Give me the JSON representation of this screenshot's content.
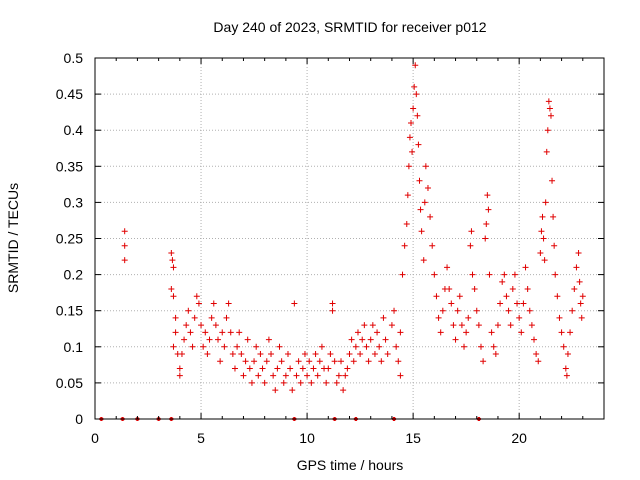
{
  "chart_data": {
    "type": "scatter",
    "title": "Day 240 of 2023, SRMTID for receiver p012",
    "xlabel": "GPS time / hours",
    "ylabel": "SRMTID / TECUs",
    "xlim": [
      0,
      24
    ],
    "ylim": [
      0,
      0.5
    ],
    "x_ticks": [
      0,
      5,
      10,
      15,
      20
    ],
    "y_ticks": [
      0,
      0.05,
      0.1,
      0.15,
      0.2,
      0.25,
      0.3,
      0.35,
      0.4,
      0.45,
      0.5
    ],
    "x_tick_labels": [
      "0",
      "5",
      "10",
      "15",
      "20"
    ],
    "y_tick_labels": [
      "0",
      "0.05",
      "0.1",
      "0.15",
      "0.2",
      "0.25",
      "0.3",
      "0.35",
      "0.4",
      "0.45",
      "0.5"
    ],
    "grid": true,
    "marker": "+",
    "color": "#e00000",
    "series": [
      {
        "name": "SRMTID",
        "points": [
          [
            0.3,
            0.0
          ],
          [
            1.3,
            0.0
          ],
          [
            2.0,
            0.0
          ],
          [
            3.0,
            0.0
          ],
          [
            3.6,
            0.0
          ],
          [
            9.4,
            0.0
          ],
          [
            11.3,
            0.0
          ],
          [
            12.3,
            0.0
          ],
          [
            14.1,
            0.0
          ],
          [
            18.1,
            0.0
          ],
          [
            1.4,
            0.26
          ],
          [
            1.4,
            0.24
          ],
          [
            1.4,
            0.22
          ],
          [
            3.6,
            0.23
          ],
          [
            3.65,
            0.22
          ],
          [
            3.7,
            0.21
          ],
          [
            3.6,
            0.18
          ],
          [
            3.7,
            0.17
          ],
          [
            3.8,
            0.14
          ],
          [
            3.8,
            0.12
          ],
          [
            3.7,
            0.1
          ],
          [
            3.9,
            0.09
          ],
          [
            4.0,
            0.07
          ],
          [
            4.0,
            0.06
          ],
          [
            4.1,
            0.09
          ],
          [
            4.2,
            0.11
          ],
          [
            4.3,
            0.13
          ],
          [
            4.4,
            0.15
          ],
          [
            4.5,
            0.12
          ],
          [
            4.6,
            0.1
          ],
          [
            4.7,
            0.14
          ],
          [
            4.8,
            0.17
          ],
          [
            4.9,
            0.16
          ],
          [
            5.0,
            0.13
          ],
          [
            5.1,
            0.1
          ],
          [
            5.2,
            0.12
          ],
          [
            5.3,
            0.09
          ],
          [
            5.4,
            0.11
          ],
          [
            5.5,
            0.14
          ],
          [
            5.6,
            0.16
          ],
          [
            5.7,
            0.13
          ],
          [
            5.8,
            0.11
          ],
          [
            5.9,
            0.08
          ],
          [
            6.0,
            0.12
          ],
          [
            6.1,
            0.1
          ],
          [
            6.2,
            0.14
          ],
          [
            6.3,
            0.16
          ],
          [
            6.4,
            0.12
          ],
          [
            6.5,
            0.09
          ],
          [
            6.6,
            0.07
          ],
          [
            6.7,
            0.1
          ],
          [
            6.8,
            0.12
          ],
          [
            6.9,
            0.09
          ],
          [
            7.0,
            0.06
          ],
          [
            7.1,
            0.08
          ],
          [
            7.2,
            0.11
          ],
          [
            7.3,
            0.07
          ],
          [
            7.4,
            0.05
          ],
          [
            7.5,
            0.08
          ],
          [
            7.6,
            0.1
          ],
          [
            7.7,
            0.06
          ],
          [
            7.8,
            0.09
          ],
          [
            7.9,
            0.07
          ],
          [
            8.0,
            0.05
          ],
          [
            8.1,
            0.08
          ],
          [
            8.2,
            0.11
          ],
          [
            8.3,
            0.09
          ],
          [
            8.4,
            0.06
          ],
          [
            8.5,
            0.04
          ],
          [
            8.6,
            0.07
          ],
          [
            8.7,
            0.1
          ],
          [
            8.8,
            0.08
          ],
          [
            8.9,
            0.05
          ],
          [
            9.0,
            0.06
          ],
          [
            9.1,
            0.09
          ],
          [
            9.2,
            0.07
          ],
          [
            9.3,
            0.04
          ],
          [
            9.4,
            0.16
          ],
          [
            9.5,
            0.06
          ],
          [
            9.6,
            0.08
          ],
          [
            9.7,
            0.05
          ],
          [
            9.8,
            0.07
          ],
          [
            9.9,
            0.09
          ],
          [
            10.0,
            0.06
          ],
          [
            10.1,
            0.08
          ],
          [
            10.2,
            0.05
          ],
          [
            10.3,
            0.07
          ],
          [
            10.4,
            0.09
          ],
          [
            10.5,
            0.06
          ],
          [
            10.6,
            0.08
          ],
          [
            10.7,
            0.1
          ],
          [
            10.8,
            0.07
          ],
          [
            10.9,
            0.05
          ],
          [
            11.0,
            0.07
          ],
          [
            11.1,
            0.09
          ],
          [
            11.2,
            0.16
          ],
          [
            11.2,
            0.15
          ],
          [
            11.3,
            0.08
          ],
          [
            11.4,
            0.05
          ],
          [
            11.5,
            0.06
          ],
          [
            11.6,
            0.08
          ],
          [
            11.7,
            0.04
          ],
          [
            11.8,
            0.06
          ],
          [
            11.9,
            0.07
          ],
          [
            12.0,
            0.09
          ],
          [
            12.1,
            0.11
          ],
          [
            12.2,
            0.08
          ],
          [
            12.3,
            0.1
          ],
          [
            12.4,
            0.12
          ],
          [
            12.5,
            0.09
          ],
          [
            12.6,
            0.11
          ],
          [
            12.7,
            0.13
          ],
          [
            12.8,
            0.1
          ],
          [
            12.9,
            0.08
          ],
          [
            13.0,
            0.11
          ],
          [
            13.1,
            0.13
          ],
          [
            13.2,
            0.09
          ],
          [
            13.3,
            0.12
          ],
          [
            13.4,
            0.1
          ],
          [
            13.5,
            0.08
          ],
          [
            13.6,
            0.14
          ],
          [
            13.7,
            0.11
          ],
          [
            13.8,
            0.09
          ],
          [
            14.0,
            0.13
          ],
          [
            14.1,
            0.15
          ],
          [
            14.2,
            0.1
          ],
          [
            14.3,
            0.08
          ],
          [
            14.4,
            0.06
          ],
          [
            14.4,
            0.12
          ],
          [
            14.5,
            0.2
          ],
          [
            14.6,
            0.24
          ],
          [
            14.7,
            0.27
          ],
          [
            14.75,
            0.31
          ],
          [
            14.8,
            0.35
          ],
          [
            14.85,
            0.39
          ],
          [
            14.9,
            0.41
          ],
          [
            14.95,
            0.37
          ],
          [
            15.0,
            0.43
          ],
          [
            15.05,
            0.46
          ],
          [
            15.1,
            0.49
          ],
          [
            15.15,
            0.45
          ],
          [
            15.2,
            0.42
          ],
          [
            15.25,
            0.38
          ],
          [
            15.3,
            0.33
          ],
          [
            15.35,
            0.29
          ],
          [
            15.4,
            0.26
          ],
          [
            15.5,
            0.22
          ],
          [
            15.55,
            0.3
          ],
          [
            15.6,
            0.35
          ],
          [
            15.7,
            0.32
          ],
          [
            15.8,
            0.28
          ],
          [
            15.9,
            0.24
          ],
          [
            16.0,
            0.2
          ],
          [
            16.1,
            0.17
          ],
          [
            16.2,
            0.14
          ],
          [
            16.3,
            0.12
          ],
          [
            16.4,
            0.15
          ],
          [
            16.5,
            0.18
          ],
          [
            16.6,
            0.21
          ],
          [
            16.7,
            0.18
          ],
          [
            16.8,
            0.16
          ],
          [
            16.9,
            0.13
          ],
          [
            17.0,
            0.11
          ],
          [
            17.1,
            0.15
          ],
          [
            17.2,
            0.17
          ],
          [
            17.3,
            0.13
          ],
          [
            17.4,
            0.1
          ],
          [
            17.5,
            0.12
          ],
          [
            17.6,
            0.14
          ],
          [
            17.7,
            0.24
          ],
          [
            17.75,
            0.26
          ],
          [
            17.8,
            0.2
          ],
          [
            17.9,
            0.18
          ],
          [
            18.0,
            0.15
          ],
          [
            18.1,
            0.13
          ],
          [
            18.2,
            0.1
          ],
          [
            18.3,
            0.08
          ],
          [
            18.4,
            0.25
          ],
          [
            18.45,
            0.27
          ],
          [
            18.5,
            0.31
          ],
          [
            18.55,
            0.29
          ],
          [
            18.6,
            0.2
          ],
          [
            18.7,
            0.12
          ],
          [
            18.8,
            0.1
          ],
          [
            18.9,
            0.09
          ],
          [
            19.0,
            0.13
          ],
          [
            19.1,
            0.16
          ],
          [
            19.2,
            0.19
          ],
          [
            19.3,
            0.2
          ],
          [
            19.4,
            0.17
          ],
          [
            19.5,
            0.15
          ],
          [
            19.6,
            0.13
          ],
          [
            19.7,
            0.18
          ],
          [
            19.8,
            0.2
          ],
          [
            19.9,
            0.16
          ],
          [
            20.0,
            0.14
          ],
          [
            20.1,
            0.12
          ],
          [
            20.2,
            0.16
          ],
          [
            20.3,
            0.21
          ],
          [
            20.4,
            0.18
          ],
          [
            20.5,
            0.15
          ],
          [
            20.6,
            0.13
          ],
          [
            20.7,
            0.11
          ],
          [
            20.8,
            0.09
          ],
          [
            20.9,
            0.08
          ],
          [
            21.0,
            0.23
          ],
          [
            21.05,
            0.26
          ],
          [
            21.1,
            0.28
          ],
          [
            21.15,
            0.25
          ],
          [
            21.2,
            0.22
          ],
          [
            21.25,
            0.3
          ],
          [
            21.3,
            0.37
          ],
          [
            21.35,
            0.4
          ],
          [
            21.4,
            0.44
          ],
          [
            21.45,
            0.43
          ],
          [
            21.5,
            0.42
          ],
          [
            21.55,
            0.33
          ],
          [
            21.6,
            0.28
          ],
          [
            21.65,
            0.24
          ],
          [
            21.7,
            0.2
          ],
          [
            21.8,
            0.17
          ],
          [
            21.9,
            0.14
          ],
          [
            22.0,
            0.12
          ],
          [
            22.1,
            0.1
          ],
          [
            22.2,
            0.07
          ],
          [
            22.25,
            0.06
          ],
          [
            22.3,
            0.09
          ],
          [
            22.4,
            0.12
          ],
          [
            22.5,
            0.15
          ],
          [
            22.6,
            0.18
          ],
          [
            22.7,
            0.21
          ],
          [
            22.8,
            0.23
          ],
          [
            22.85,
            0.19
          ],
          [
            22.9,
            0.16
          ],
          [
            22.95,
            0.14
          ],
          [
            23.0,
            0.17
          ]
        ]
      }
    ]
  }
}
